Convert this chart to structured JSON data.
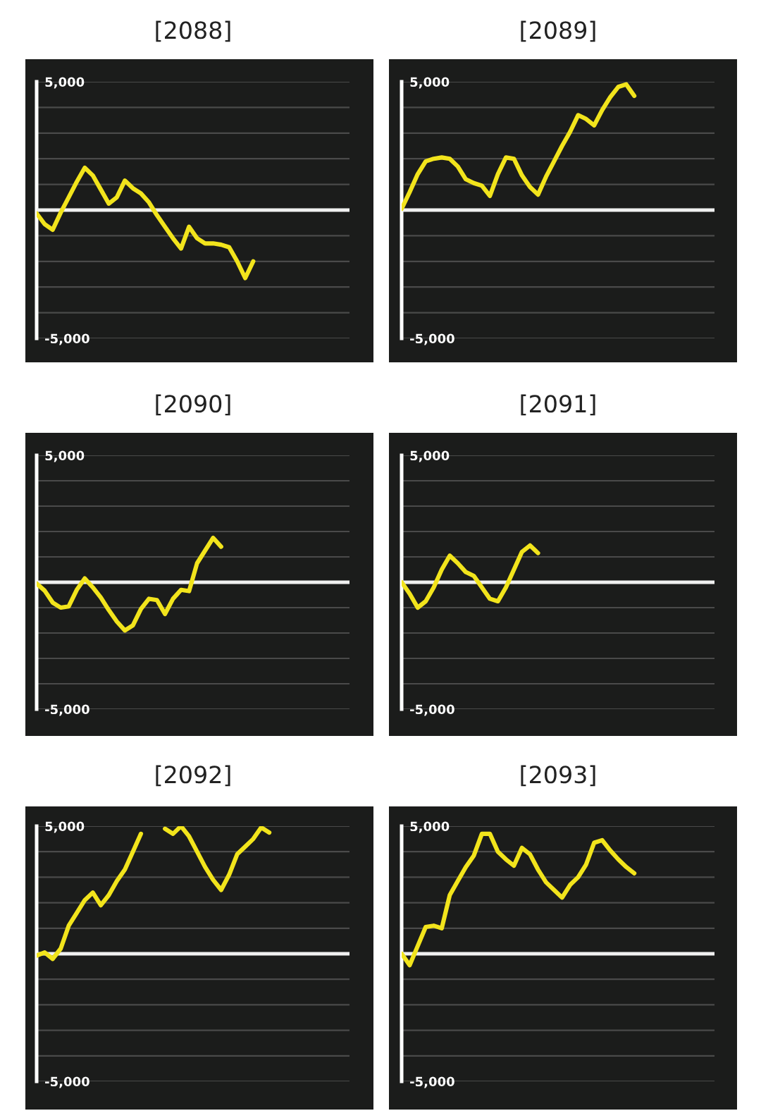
{
  "chart_data": [
    {
      "type": "line",
      "title": "[2088]",
      "categories": [
        null,
        null,
        null,
        null,
        null,
        null,
        null,
        null,
        null,
        null,
        null,
        null,
        null,
        null,
        null,
        null,
        null,
        null,
        null,
        null,
        null,
        null,
        null,
        null,
        null,
        null,
        null,
        null,
        null,
        null,
        null,
        null,
        null,
        null,
        null,
        null,
        null,
        null,
        null,
        null
      ],
      "series": [
        {
          "color": "#f2e41c",
          "values": [
            -130,
            -550,
            -770,
            -100,
            500,
            1100,
            1650,
            1350,
            800,
            250,
            500,
            1150,
            850,
            650,
            300,
            -200,
            -650,
            -1100,
            -1500,
            -650,
            -1100,
            -1300,
            -1300,
            -1350,
            -1450,
            -2000,
            -2650,
            -2000,
            null,
            null,
            null,
            null,
            null,
            null,
            null,
            null,
            null,
            null,
            null,
            null
          ]
        }
      ],
      "ylim": [
        -5000,
        5000
      ],
      "yticks": [
        {
          "value": -5000,
          "label": "-5,000"
        },
        {
          "value": -4000,
          "label": null
        },
        {
          "value": -3000,
          "label": null
        },
        {
          "value": -2000,
          "label": null
        },
        {
          "value": -1000,
          "label": null
        },
        {
          "value": 0,
          "label": null
        },
        {
          "value": 1000,
          "label": null
        },
        {
          "value": 2000,
          "label": null
        },
        {
          "value": 3000,
          "label": null
        },
        {
          "value": 4000,
          "label": null
        },
        {
          "value": 5000,
          "label": "5,000"
        }
      ],
      "grid": "y",
      "tick_labels": "y",
      "ref_lines": [
        {
          "axis": "y",
          "value": 0,
          "color": "#f0f0f0"
        }
      ]
    },
    {
      "type": "line",
      "title": "[2089]",
      "categories": [
        null,
        null,
        null,
        null,
        null,
        null,
        null,
        null,
        null,
        null,
        null,
        null,
        null,
        null,
        null,
        null,
        null,
        null,
        null,
        null,
        null,
        null,
        null,
        null,
        null,
        null,
        null,
        null,
        null,
        null,
        null,
        null,
        null,
        null,
        null,
        null,
        null,
        null,
        null,
        null
      ],
      "series": [
        {
          "color": "#f2e41c",
          "values": [
            50,
            700,
            1400,
            1900,
            2000,
            2050,
            2000,
            1700,
            1200,
            1050,
            950,
            550,
            1400,
            2050,
            2000,
            1350,
            900,
            600,
            1300,
            1900,
            2500,
            3050,
            3700,
            3550,
            3300,
            3900,
            4400,
            4800,
            4900,
            4450,
            null,
            null,
            null,
            null,
            null,
            null,
            null,
            null,
            null,
            null
          ]
        }
      ],
      "ylim": [
        -5000,
        5000
      ],
      "yticks": [
        {
          "value": -5000,
          "label": "-5,000"
        },
        {
          "value": -4000,
          "label": null
        },
        {
          "value": -3000,
          "label": null
        },
        {
          "value": -2000,
          "label": null
        },
        {
          "value": -1000,
          "label": null
        },
        {
          "value": 0,
          "label": null
        },
        {
          "value": 1000,
          "label": null
        },
        {
          "value": 2000,
          "label": null
        },
        {
          "value": 3000,
          "label": null
        },
        {
          "value": 4000,
          "label": null
        },
        {
          "value": 5000,
          "label": "5,000"
        }
      ],
      "grid": "y",
      "tick_labels": "y",
      "ref_lines": [
        {
          "axis": "y",
          "value": 0,
          "color": "#f0f0f0"
        }
      ]
    },
    {
      "type": "line",
      "title": "[2090]",
      "categories": [
        null,
        null,
        null,
        null,
        null,
        null,
        null,
        null,
        null,
        null,
        null,
        null,
        null,
        null,
        null,
        null,
        null,
        null,
        null,
        null,
        null,
        null,
        null,
        null,
        null,
        null,
        null,
        null,
        null,
        null,
        null,
        null,
        null,
        null,
        null,
        null,
        null,
        null,
        null,
        null
      ],
      "series": [
        {
          "color": "#f2e41c",
          "values": [
            -50,
            -330,
            -800,
            -1000,
            -950,
            -300,
            150,
            -200,
            -600,
            -1100,
            -1550,
            -1900,
            -1700,
            -1050,
            -650,
            -700,
            -1250,
            -650,
            -300,
            -350,
            750,
            1250,
            1750,
            1400,
            null,
            null,
            null,
            null,
            null,
            null,
            null,
            null,
            null,
            null,
            null,
            null,
            null,
            null,
            null,
            null
          ]
        }
      ],
      "ylim": [
        -5000,
        5000
      ],
      "yticks": [
        {
          "value": -5000,
          "label": "-5,000"
        },
        {
          "value": -4000,
          "label": null
        },
        {
          "value": -3000,
          "label": null
        },
        {
          "value": -2000,
          "label": null
        },
        {
          "value": -1000,
          "label": null
        },
        {
          "value": 0,
          "label": null
        },
        {
          "value": 1000,
          "label": null
        },
        {
          "value": 2000,
          "label": null
        },
        {
          "value": 3000,
          "label": null
        },
        {
          "value": 4000,
          "label": null
        },
        {
          "value": 5000,
          "label": "5,000"
        }
      ],
      "grid": "y",
      "tick_labels": "y",
      "ref_lines": [
        {
          "axis": "y",
          "value": 0,
          "color": "#f0f0f0"
        }
      ]
    },
    {
      "type": "line",
      "title": "[2091]",
      "categories": [
        null,
        null,
        null,
        null,
        null,
        null,
        null,
        null,
        null,
        null,
        null,
        null,
        null,
        null,
        null,
        null,
        null,
        null,
        null,
        null,
        null,
        null,
        null,
        null,
        null,
        null,
        null,
        null,
        null,
        null,
        null,
        null,
        null,
        null,
        null,
        null,
        null,
        null,
        null,
        null
      ],
      "series": [
        {
          "color": "#f2e41c",
          "values": [
            0,
            -450,
            -1000,
            -750,
            -200,
            500,
            1050,
            750,
            400,
            250,
            -200,
            -650,
            -750,
            -200,
            500,
            1200,
            1450,
            1150,
            null,
            null,
            null,
            null,
            null,
            null,
            null,
            null,
            null,
            null,
            null,
            null,
            null,
            null,
            null,
            null,
            null,
            null,
            null,
            null,
            null,
            null
          ]
        }
      ],
      "ylim": [
        -5000,
        5000
      ],
      "yticks": [
        {
          "value": -5000,
          "label": "-5,000"
        },
        {
          "value": -4000,
          "label": null
        },
        {
          "value": -3000,
          "label": null
        },
        {
          "value": -2000,
          "label": null
        },
        {
          "value": -1000,
          "label": null
        },
        {
          "value": 0,
          "label": null
        },
        {
          "value": 1000,
          "label": null
        },
        {
          "value": 2000,
          "label": null
        },
        {
          "value": 3000,
          "label": null
        },
        {
          "value": 4000,
          "label": null
        },
        {
          "value": 5000,
          "label": "5,000"
        }
      ],
      "grid": "y",
      "tick_labels": "y",
      "ref_lines": [
        {
          "axis": "y",
          "value": 0,
          "color": "#f0f0f0"
        }
      ]
    },
    {
      "type": "line",
      "title": "[2092]",
      "categories": [
        null,
        null,
        null,
        null,
        null,
        null,
        null,
        null,
        null,
        null,
        null,
        null,
        null,
        null,
        null,
        null,
        null,
        null,
        null,
        null,
        null,
        null,
        null,
        null,
        null,
        null,
        null,
        null,
        null,
        null,
        null,
        null,
        null,
        null,
        null,
        null,
        null,
        null,
        null,
        null
      ],
      "series": [
        {
          "color": "#f2e41c",
          "values": [
            -70,
            50,
            -200,
            200,
            1100,
            1600,
            2100,
            2400,
            1900,
            2300,
            2850,
            3300,
            4000,
            4700,
            null,
            null,
            4900,
            4700,
            5000,
            4600,
            4000,
            3400,
            2900,
            2500,
            3100,
            3900,
            4200,
            4500,
            4950,
            4750,
            null,
            null,
            null,
            null,
            null,
            null,
            null,
            null,
            null,
            null
          ]
        }
      ],
      "ylim": [
        -5000,
        5000
      ],
      "yticks": [
        {
          "value": -5000,
          "label": "-5,000"
        },
        {
          "value": -4000,
          "label": null
        },
        {
          "value": -3000,
          "label": null
        },
        {
          "value": -2000,
          "label": null
        },
        {
          "value": -1000,
          "label": null
        },
        {
          "value": 0,
          "label": null
        },
        {
          "value": 1000,
          "label": null
        },
        {
          "value": 2000,
          "label": null
        },
        {
          "value": 3000,
          "label": null
        },
        {
          "value": 4000,
          "label": null
        },
        {
          "value": 5000,
          "label": "5,000"
        }
      ],
      "grid": "y",
      "tick_labels": "y",
      "ref_lines": [
        {
          "axis": "y",
          "value": 0,
          "color": "#f0f0f0"
        }
      ]
    },
    {
      "type": "line",
      "title": "[2093]",
      "categories": [
        null,
        null,
        null,
        null,
        null,
        null,
        null,
        null,
        null,
        null,
        null,
        null,
        null,
        null,
        null,
        null,
        null,
        null,
        null,
        null,
        null,
        null,
        null,
        null,
        null,
        null,
        null,
        null,
        null,
        null,
        null,
        null,
        null,
        null,
        null,
        null,
        null,
        null,
        null,
        null
      ],
      "series": [
        {
          "color": "#f2e41c",
          "values": [
            0,
            -450,
            300,
            1050,
            1100,
            1000,
            2300,
            2850,
            3400,
            3850,
            4700,
            4700,
            4000,
            3700,
            3450,
            4150,
            3900,
            3300,
            2800,
            2500,
            2200,
            2700,
            3000,
            3500,
            4350,
            4450,
            4050,
            3700,
            3400,
            3150,
            null,
            null,
            null,
            null,
            null,
            null,
            null,
            null,
            null,
            null
          ]
        }
      ],
      "ylim": [
        -5000,
        5000
      ],
      "yticks": [
        {
          "value": -5000,
          "label": "-5,000"
        },
        {
          "value": -4000,
          "label": null
        },
        {
          "value": -3000,
          "label": null
        },
        {
          "value": -2000,
          "label": null
        },
        {
          "value": -1000,
          "label": null
        },
        {
          "value": 0,
          "label": null
        },
        {
          "value": 1000,
          "label": null
        },
        {
          "value": 2000,
          "label": null
        },
        {
          "value": 3000,
          "label": null
        },
        {
          "value": 4000,
          "label": null
        },
        {
          "value": 5000,
          "label": "5,000"
        }
      ],
      "grid": "y",
      "tick_labels": "y",
      "ref_lines": [
        {
          "axis": "y",
          "value": 0,
          "color": "#f0f0f0"
        }
      ]
    }
  ]
}
